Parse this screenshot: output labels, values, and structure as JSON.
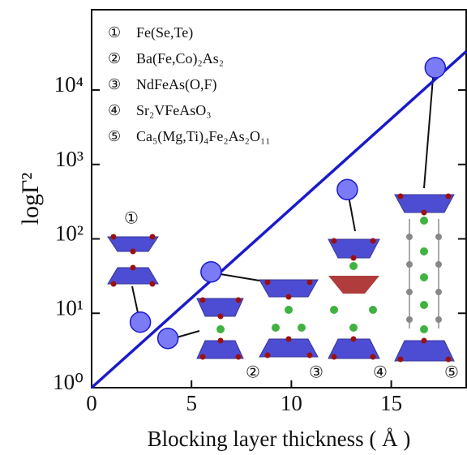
{
  "chart_data": {
    "type": "scatter",
    "xlabel": "Blocking layer thickness ( Å )",
    "ylabel": "logΓ²",
    "x": [
      2.44,
      3.82,
      5.98,
      12.8,
      17.2
    ],
    "values": [
      7.6,
      4.6,
      36,
      460,
      20000
    ],
    "color": "#7b7bf5",
    "edge_color": "#1a1acc",
    "fit": {
      "x": [
        0,
        18.75
      ],
      "values": [
        1,
        33000
      ],
      "color": "#1a1acc"
    },
    "log_y": true,
    "xlim": [
      0,
      18.75
    ],
    "ylim": [
      1,
      120000
    ],
    "xticks": [
      0,
      5,
      10,
      15
    ],
    "yticks": [
      {
        "value": 1,
        "label": "10⁰"
      },
      {
        "value": 10,
        "label": "10¹"
      },
      {
        "value": 100,
        "label": "10²"
      },
      {
        "value": 1000,
        "label": "10³"
      },
      {
        "value": 10000,
        "label": "10⁴"
      }
    ],
    "legend": [
      {
        "marker": "①",
        "label": "Fe(Se,Te)"
      },
      {
        "marker": "②",
        "label": "Ba(Fe,Co)₂As₂"
      },
      {
        "marker": "③",
        "label": "NdFeAs(O,F)"
      },
      {
        "marker": "④",
        "label": "Sr₂VFeAsO₃"
      },
      {
        "marker": "⑤",
        "label": "Ca₅(Mg,Ti)₄Fe₂As₂O₁₁"
      }
    ],
    "annotations": [
      "①",
      "②",
      "③",
      "④",
      "⑤"
    ]
  }
}
